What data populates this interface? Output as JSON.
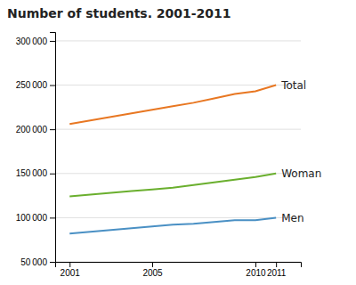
{
  "chart_data": {
    "type": "line",
    "title": "Number of students. 2001-2011",
    "x": [
      2001,
      2002,
      2003,
      2004,
      2005,
      2006,
      2007,
      2008,
      2009,
      2010,
      2011
    ],
    "series": [
      {
        "name": "Total",
        "color": "#E87722",
        "values": [
          206000,
          210000,
          214000,
          218000,
          222000,
          226000,
          230000,
          235000,
          240000,
          243000,
          250000
        ]
      },
      {
        "name": "Woman",
        "color": "#6AAF2E",
        "values": [
          124000,
          126000,
          128000,
          130000,
          132000,
          134000,
          137000,
          140000,
          143000,
          146000,
          150000
        ]
      },
      {
        "name": "Men",
        "color": "#4A90C4",
        "values": [
          82000,
          84000,
          86000,
          88000,
          90000,
          92000,
          93000,
          95000,
          97000,
          97000,
          100000
        ]
      }
    ],
    "xlim": [
      2000.3,
      2012.2
    ],
    "xticks": [
      2001,
      2005,
      2010,
      2011
    ],
    "ylim": [
      50000,
      310000
    ],
    "yticks": [
      {
        "value": 50000,
        "label": "50 000"
      },
      {
        "value": 100000,
        "label": "100 000"
      },
      {
        "value": 150000,
        "label": "150 000"
      },
      {
        "value": 200000,
        "label": "200 000"
      },
      {
        "value": 250000,
        "label": "250 000"
      },
      {
        "value": 300000,
        "label": "300 000"
      }
    ],
    "grid": true
  }
}
